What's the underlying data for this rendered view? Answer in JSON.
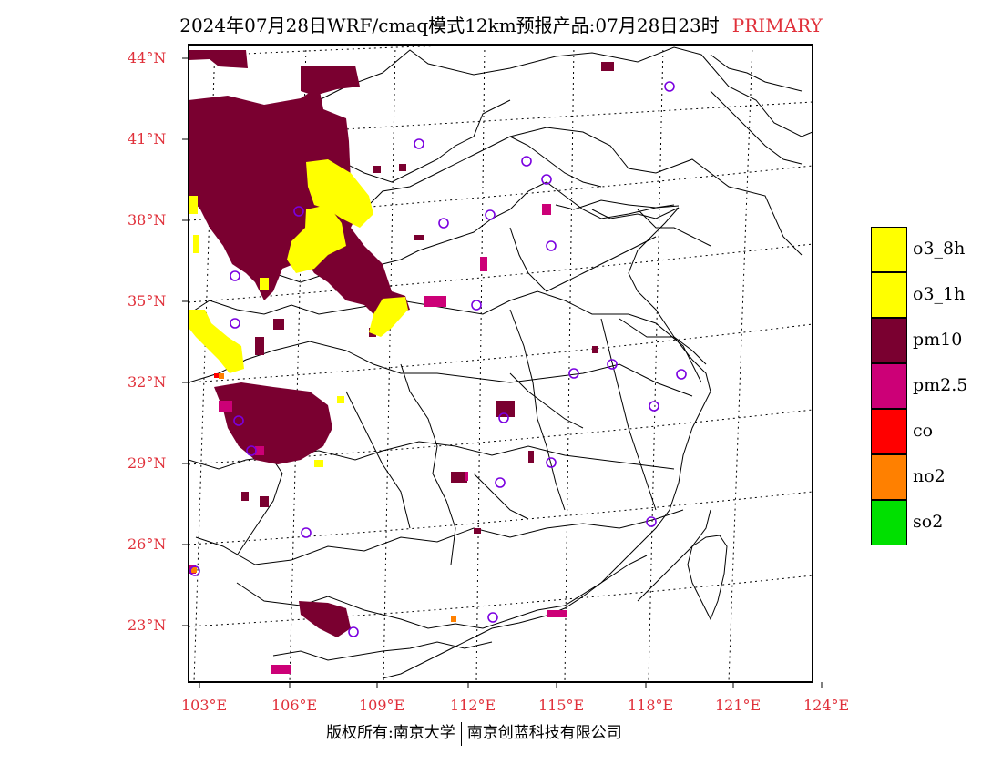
{
  "header": {
    "title": "2024年07月28日WRF/cmaq模式12km预报产品:07月28日23时",
    "tag": "PRIMARY"
  },
  "map": {
    "lat_labels": [
      "44°N",
      "41°N",
      "38°N",
      "35°N",
      "32°N",
      "29°N",
      "26°N",
      "23°N"
    ],
    "lon_labels": [
      "103°E",
      "106°E",
      "109°E",
      "112°E",
      "115°E",
      "118°E",
      "121°E",
      "124°E"
    ],
    "colors": {
      "o3_8h": "#ffff00",
      "o3_1h": "#ffff00",
      "pm10": "#7a0030",
      "pm2_5": "#cc0077",
      "co": "#ff0000",
      "no2": "#ff8000",
      "so2": "#00e000",
      "station": "#7a00e0",
      "label": "#e0303a"
    }
  },
  "legend": [
    {
      "label": "o3_8h",
      "color": "#ffff00"
    },
    {
      "label": "o3_1h",
      "color": "#ffff00"
    },
    {
      "label": "pm10",
      "color": "#7a0030"
    },
    {
      "label": "pm2.5",
      "color": "#cc0077"
    },
    {
      "label": "co",
      "color": "#ff0000"
    },
    {
      "label": "no2",
      "color": "#ff8000"
    },
    {
      "label": "so2",
      "color": "#00e000"
    }
  ],
  "footer": {
    "left": "版权所有:南京大学",
    "right": "南京创蓝科技有限公司"
  }
}
